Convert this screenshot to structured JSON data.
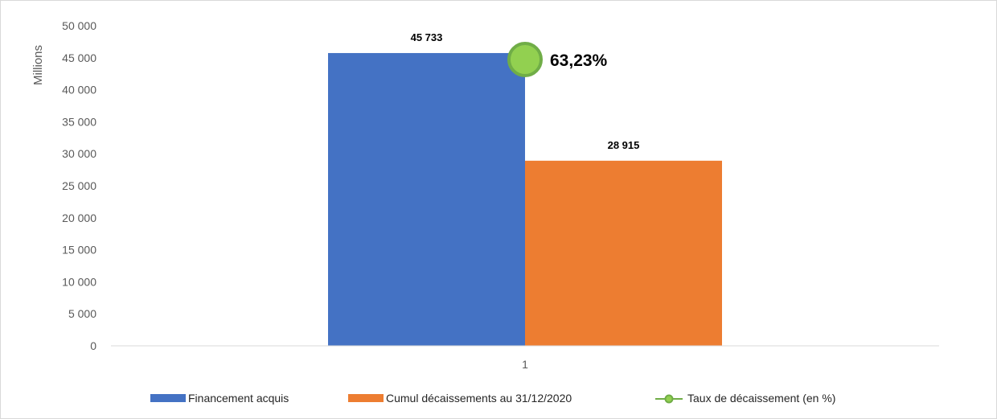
{
  "chart_data": {
    "type": "bar",
    "categories": [
      "1"
    ],
    "series": [
      {
        "name": "Financement acquis",
        "values": [
          45733
        ],
        "data_labels": [
          "45 733"
        ],
        "color": "#4472c4"
      },
      {
        "name": "Cumul décaissements au 31/12/2020",
        "values": [
          28915
        ],
        "data_labels": [
          "28 915"
        ],
        "color": "#ed7d31"
      }
    ],
    "line_series": {
      "name": "Taux de décaissement (en %)",
      "value": 63.23,
      "data_label": "63,23%",
      "color": "#92d050",
      "edge_color": "#70ad47"
    },
    "ylabel": "Millions",
    "ylim": [
      0,
      50000
    ],
    "yticks": [
      0,
      5000,
      10000,
      15000,
      20000,
      25000,
      30000,
      35000,
      40000,
      45000,
      50000
    ],
    "ytick_labels": [
      "0",
      "5 000",
      "10 000",
      "15 000",
      "20 000",
      "25 000",
      "30 000",
      "35 000",
      "40 000",
      "45 000",
      "50 000"
    ],
    "grid": false,
    "legend_position": "bottom"
  }
}
